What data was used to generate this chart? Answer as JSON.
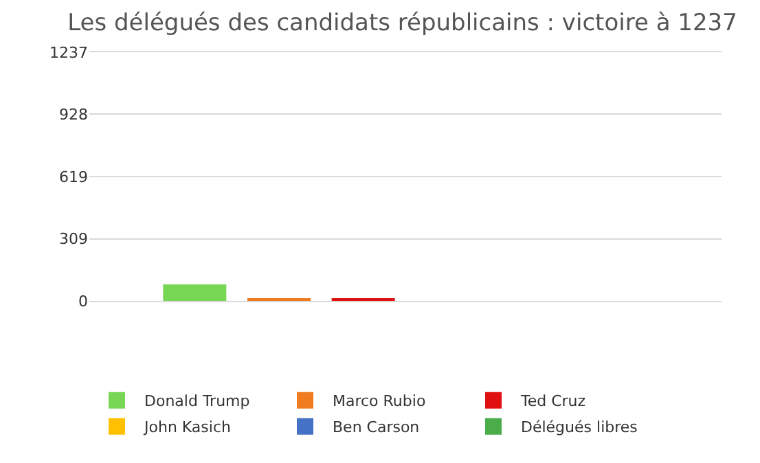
{
  "chart_data": {
    "type": "bar",
    "title": "Les délégués des candidats républicains : victoire à 1237",
    "categories": [
      null
    ],
    "series": [
      {
        "name": "Donald Trump",
        "color": "#77d653",
        "values": [
          82
        ]
      },
      {
        "name": "Marco Rubio",
        "color": "#f07c1f",
        "values": [
          10
        ]
      },
      {
        "name": "Ted Cruz",
        "color": "#e01010",
        "values": [
          11
        ]
      },
      {
        "name": "John Kasich",
        "color": "#ffc000",
        "values": [
          0
        ]
      },
      {
        "name": "Ben Carson",
        "color": "#4472c4",
        "values": [
          0
        ]
      },
      {
        "name": "Délégués libres",
        "color": "#4aad4a",
        "values": [
          0
        ]
      }
    ],
    "ylim": [
      0,
      1237
    ],
    "yticks": [
      0,
      309,
      619,
      928,
      1237
    ],
    "grid": "y",
    "legend": "bottom"
  }
}
